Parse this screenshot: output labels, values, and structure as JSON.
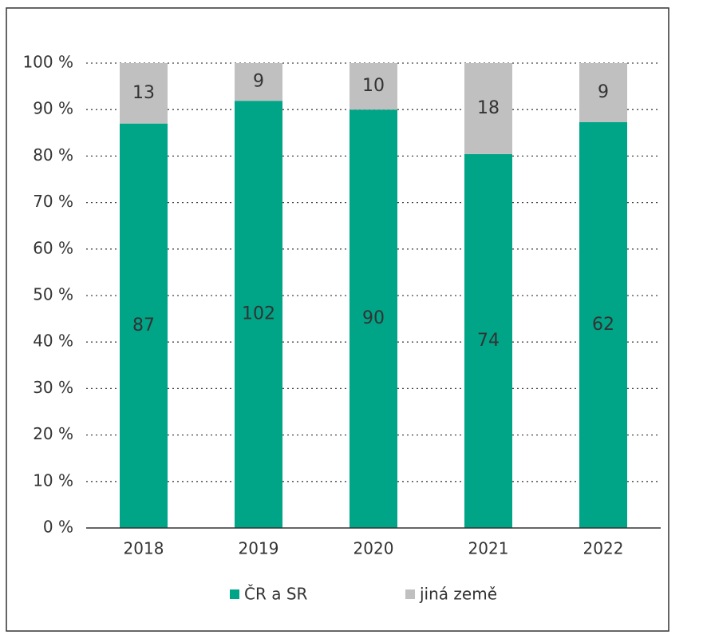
{
  "chart_data": {
    "type": "bar",
    "stacking": "percent",
    "categories": [
      "2018",
      "2019",
      "2020",
      "2021",
      "2022"
    ],
    "series": [
      {
        "name": "ČR a SR",
        "color": "#00a487",
        "values": [
          87,
          102,
          90,
          74,
          62
        ]
      },
      {
        "name": "jiná země",
        "color": "#c0c0c0",
        "values": [
          13,
          9,
          10,
          18,
          9
        ]
      }
    ],
    "ylim": [
      0,
      100
    ],
    "yticks": [
      {
        "value": 0,
        "label": "0 %"
      },
      {
        "value": 10,
        "label": "10 %"
      },
      {
        "value": 20,
        "label": "20 %"
      },
      {
        "value": 30,
        "label": "30 %"
      },
      {
        "value": 40,
        "label": "40 %"
      },
      {
        "value": 50,
        "label": "50 %"
      },
      {
        "value": 60,
        "label": "60 %"
      },
      {
        "value": 70,
        "label": "70 %"
      },
      {
        "value": 80,
        "label": "80 %"
      },
      {
        "value": 90,
        "label": "90 %"
      },
      {
        "value": 100,
        "label": "100 %"
      }
    ],
    "grid": true,
    "legend": "bottom"
  }
}
